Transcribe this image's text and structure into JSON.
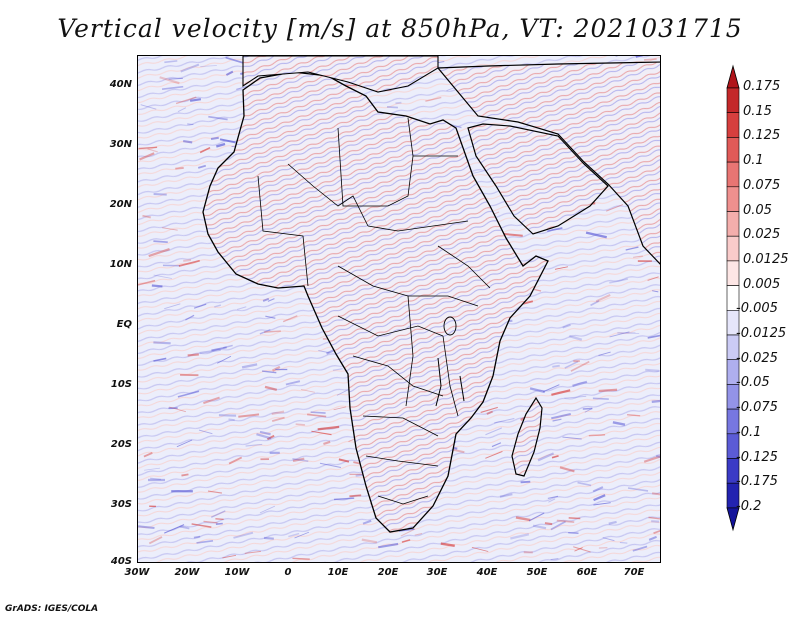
{
  "title": "Vertical velocity [m/s] at 850hPa, VT: 2021031715",
  "credit": "GrADS: IGES/COLA",
  "axes": {
    "latitude_labels": [
      "40N",
      "30N",
      "20N",
      "10N",
      "EQ",
      "10S",
      "20S",
      "30S",
      "40S"
    ],
    "longitude_labels": [
      "30W",
      "20W",
      "10W",
      "0",
      "10E",
      "20E",
      "30E",
      "40E",
      "50E",
      "60E",
      "70E"
    ]
  },
  "colorbar": {
    "labels": [
      "0.175",
      "0.15",
      "0.125",
      "0.1",
      "0.075",
      "0.05",
      "0.025",
      "0.0125",
      "0.005",
      "-0.005",
      "-0.0125",
      "-0.025",
      "-0.05",
      "-0.075",
      "-0.1",
      "-0.125",
      "-0.175",
      "-0.2"
    ],
    "colors": [
      "#b0141a",
      "#c4282a",
      "#d63f3e",
      "#e05a58",
      "#e87573",
      "#ef908e",
      "#f4aeac",
      "#f9cbca",
      "#fde6e5",
      "#ffffff",
      "#e6e6fb",
      "#cbcbf5",
      "#afafef",
      "#9393e8",
      "#7777e0",
      "#5b5bd6",
      "#3b3bc6",
      "#2323b0",
      "#14149a"
    ]
  },
  "colors": {
    "positive": "#d63f3e",
    "negative": "#5b5bd6",
    "background": "#eef0fb",
    "land": "#f3e9ee"
  }
}
